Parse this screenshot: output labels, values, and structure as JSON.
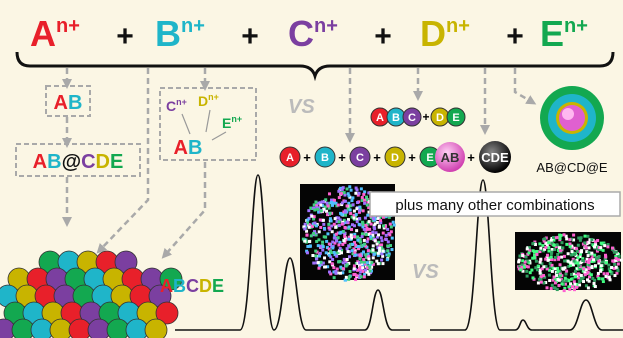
{
  "header": {
    "ions": [
      {
        "symbol": "A",
        "charge": "n+",
        "color": "#e8202a"
      },
      {
        "symbol": "B",
        "charge": "n+",
        "color": "#1fb5c9"
      },
      {
        "symbol": "C",
        "charge": "n+",
        "color": "#7b3fa0"
      },
      {
        "symbol": "D",
        "charge": "n+",
        "color": "#c8b400"
      },
      {
        "symbol": "E",
        "charge": "n+",
        "color": "#13a850"
      }
    ],
    "operator": "+"
  },
  "labels": {
    "ab": [
      "A",
      "B"
    ],
    "ab_cde": [
      "A",
      "B",
      "@",
      "C",
      "D",
      "E"
    ],
    "precursors": {
      "ions": [
        {
          "symbol": "C",
          "charge": "n+"
        },
        {
          "symbol": "D",
          "charge": "n+"
        },
        {
          "symbol": "E",
          "charge": "n+"
        }
      ],
      "product": [
        "A",
        "B"
      ]
    },
    "vs": "VS",
    "abc_de": {
      "groups": [
        [
          "A",
          "B",
          "C"
        ],
        [
          "D",
          "E"
        ]
      ],
      "operator": "+"
    },
    "separate": [
      "A",
      "B",
      "C",
      "D",
      "E"
    ],
    "janus": [
      "AB",
      "CDE"
    ],
    "core_shell": "AB@CD@E",
    "combinations": "plus many other combinations",
    "abcde": [
      "A",
      "B",
      "C",
      "D",
      "E"
    ]
  }
}
